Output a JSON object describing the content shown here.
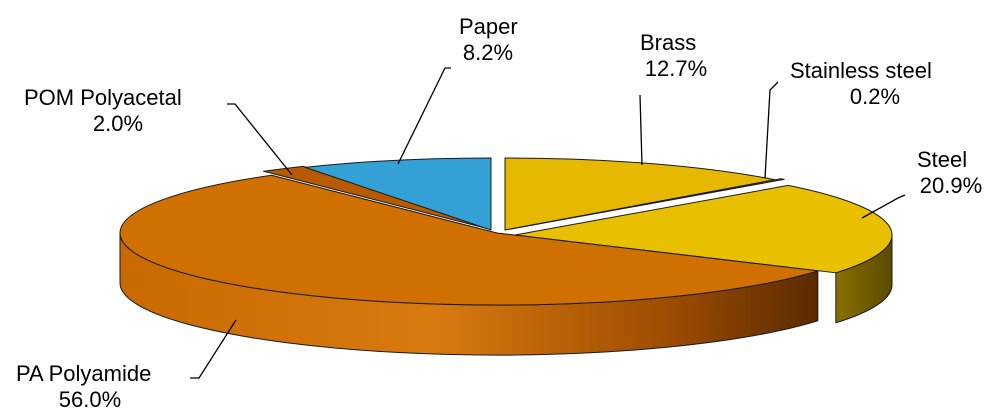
{
  "chart_data": {
    "type": "pie",
    "style": "3d-exploded",
    "slices": [
      {
        "label": "Brass",
        "value": 12.7,
        "value_label": "12.7%",
        "color": "#e6b800"
      },
      {
        "label": "Stainless steel",
        "value": 0.2,
        "value_label": "0.2%",
        "color": "#c9a300"
      },
      {
        "label": "Steel",
        "value": 20.9,
        "value_label": "20.9%",
        "color": "#e8c000"
      },
      {
        "label": "PA Polyamide",
        "value": 56.0,
        "value_label": "56.0%",
        "color": "#d07000"
      },
      {
        "label": "POM Polyacetal",
        "value": 2.0,
        "value_label": "2.0%",
        "color": "#b85a00"
      },
      {
        "label": "Paper",
        "value": 8.2,
        "value_label": "8.2%",
        "color": "#33a0d6"
      }
    ]
  }
}
